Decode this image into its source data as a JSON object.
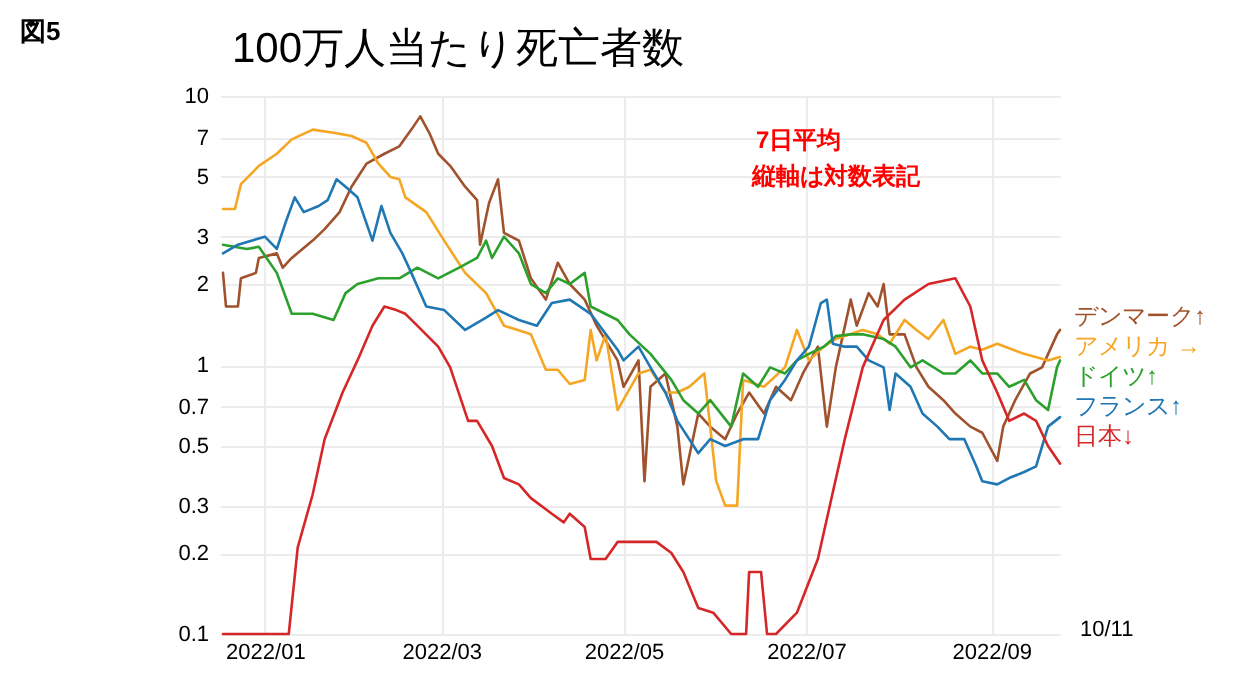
{
  "chart_data": {
    "type": "line",
    "title": "100万人当たり死亡者数",
    "annotations": [
      "図5",
      "7日平均",
      "縦軸は対数表記",
      "10/11"
    ],
    "log": "y",
    "grid": true,
    "legend": "right",
    "xlim": [
      "2021-12-17",
      "2022-09-24"
    ],
    "xticks": [
      {
        "value": "2022-01-01",
        "label": "2022/01"
      },
      {
        "value": "2022-03-01",
        "label": "2022/03"
      },
      {
        "value": "2022-05-01",
        "label": "2022/05"
      },
      {
        "value": "2022-07-01",
        "label": "2022/07"
      },
      {
        "value": "2022-09-01",
        "label": "2022/09"
      }
    ],
    "ylim": [
      0.1,
      10
    ],
    "yticks": [
      0.1,
      0.2,
      0.3,
      0.5,
      0.7,
      1,
      2,
      3,
      5,
      7,
      10
    ],
    "series": [
      {
        "name": "デンマーク↑",
        "color": "#a0522d",
        "x": [
          "2021-12-18",
          "2021-12-19",
          "2021-12-23",
          "2021-12-24",
          "2021-12-29",
          "2021-12-30",
          "2022-01-05",
          "2022-01-07",
          "2022-01-10",
          "2022-01-17",
          "2022-01-21",
          "2022-01-26",
          "2022-01-30",
          "2022-02-04",
          "2022-02-10",
          "2022-02-15",
          "2022-02-19",
          "2022-02-22",
          "2022-02-25",
          "2022-02-28",
          "2022-03-04",
          "2022-03-09",
          "2022-03-13",
          "2022-03-14",
          "2022-03-17",
          "2022-03-20",
          "2022-03-22",
          "2022-03-27",
          "2022-03-31",
          "2022-04-05",
          "2022-04-09",
          "2022-04-13",
          "2022-04-18",
          "2022-04-22",
          "2022-04-29",
          "2022-05-01",
          "2022-05-06",
          "2022-05-08",
          "2022-05-10",
          "2022-05-15",
          "2022-05-19",
          "2022-05-21",
          "2022-05-26",
          "2022-05-30",
          "2022-06-04",
          "2022-06-08",
          "2022-06-12",
          "2022-06-17",
          "2022-06-21",
          "2022-06-26",
          "2022-06-30",
          "2022-07-05",
          "2022-07-08",
          "2022-07-11",
          "2022-07-16",
          "2022-07-18",
          "2022-07-22",
          "2022-07-25",
          "2022-07-27",
          "2022-07-29",
          "2022-08-03",
          "2022-08-07",
          "2022-08-11",
          "2022-08-16",
          "2022-08-20",
          "2022-08-25",
          "2022-08-29",
          "2022-09-03",
          "2022-09-05",
          "2022-09-09",
          "2022-09-14",
          "2022-09-18",
          "2022-09-23",
          "2022-09-24"
        ],
        "values": [
          2.2,
          1.65,
          1.65,
          2.1,
          2.2,
          2.5,
          2.6,
          2.3,
          2.5,
          2.9,
          3.2,
          3.7,
          4.6,
          5.6,
          6.1,
          6.5,
          7.5,
          8.4,
          7.3,
          6.1,
          5.5,
          4.6,
          4.1,
          2.8,
          4.0,
          4.9,
          3.1,
          2.9,
          2.1,
          1.75,
          2.4,
          2.0,
          1.75,
          1.4,
          1.04,
          0.83,
          1.04,
          0.37,
          0.83,
          0.93,
          0.59,
          0.36,
          0.66,
          0.59,
          0.53,
          0.66,
          0.79,
          0.66,
          0.83,
          0.74,
          0.93,
          1.17,
          0.59,
          0.98,
          1.75,
          1.4,
          1.85,
          1.65,
          2.0,
          1.3,
          1.3,
          0.98,
          0.83,
          0.74,
          0.66,
          0.59,
          0.56,
          0.44,
          0.59,
          0.74,
          0.93,
          0.98,
          1.3,
          1.35
        ]
      },
      {
        "name": "アメリカ →",
        "color": "#f5a623",
        "x": [
          "2021-12-18",
          "2021-12-22",
          "2021-12-24",
          "2021-12-30",
          "2022-01-05",
          "2022-01-10",
          "2022-01-17",
          "2022-01-24",
          "2022-01-30",
          "2022-02-04",
          "2022-02-08",
          "2022-02-12",
          "2022-02-15",
          "2022-02-17",
          "2022-02-24",
          "2022-03-02",
          "2022-03-09",
          "2022-03-16",
          "2022-03-22",
          "2022-03-31",
          "2022-04-05",
          "2022-04-09",
          "2022-04-13",
          "2022-04-18",
          "2022-04-20",
          "2022-04-22",
          "2022-04-25",
          "2022-04-29",
          "2022-05-06",
          "2022-05-10",
          "2022-05-15",
          "2022-05-19",
          "2022-05-23",
          "2022-05-28",
          "2022-06-01",
          "2022-06-04",
          "2022-06-08",
          "2022-06-10",
          "2022-06-17",
          "2022-06-24",
          "2022-06-28",
          "2022-07-02",
          "2022-07-07",
          "2022-07-11",
          "2022-07-20",
          "2022-07-25",
          "2022-07-29",
          "2022-08-03",
          "2022-08-07",
          "2022-08-11",
          "2022-08-16",
          "2022-08-20",
          "2022-08-25",
          "2022-08-29",
          "2022-09-03",
          "2022-09-12",
          "2022-09-20",
          "2022-09-24"
        ],
        "values": [
          3.8,
          3.8,
          4.7,
          5.5,
          6.1,
          6.9,
          7.5,
          7.3,
          7.1,
          6.7,
          5.6,
          5.0,
          4.9,
          4.2,
          3.7,
          2.9,
          2.2,
          1.85,
          1.4,
          1.3,
          0.96,
          0.96,
          0.85,
          0.88,
          1.35,
          1.04,
          1.3,
          0.68,
          0.93,
          0.96,
          0.79,
          0.79,
          0.83,
          0.93,
          0.37,
          0.3,
          0.3,
          0.88,
          0.83,
          0.98,
          1.35,
          1.04,
          1.17,
          1.25,
          1.35,
          1.3,
          1.2,
          1.47,
          1.35,
          1.25,
          1.47,
          1.1,
          1.17,
          1.14,
          1.2,
          1.1,
          1.04,
          1.07
        ]
      },
      {
        "name": "ドイツ↑",
        "color": "#2ca02c",
        "x": [
          "2021-12-18",
          "2021-12-26",
          "2021-12-30",
          "2022-01-05",
          "2022-01-10",
          "2022-01-17",
          "2022-01-24",
          "2022-01-28",
          "2022-02-01",
          "2022-02-08",
          "2022-02-15",
          "2022-02-21",
          "2022-02-28",
          "2022-03-07",
          "2022-03-13",
          "2022-03-16",
          "2022-03-18",
          "2022-03-22",
          "2022-03-27",
          "2022-03-31",
          "2022-04-05",
          "2022-04-09",
          "2022-04-13",
          "2022-04-18",
          "2022-04-20",
          "2022-04-29",
          "2022-05-03",
          "2022-05-10",
          "2022-05-17",
          "2022-05-21",
          "2022-05-26",
          "2022-05-30",
          "2022-06-06",
          "2022-06-10",
          "2022-06-15",
          "2022-06-19",
          "2022-06-24",
          "2022-06-28",
          "2022-07-02",
          "2022-07-07",
          "2022-07-11",
          "2022-07-16",
          "2022-07-20",
          "2022-07-27",
          "2022-07-31",
          "2022-08-05",
          "2022-08-09",
          "2022-08-16",
          "2022-08-20",
          "2022-08-25",
          "2022-08-29",
          "2022-09-03",
          "2022-09-07",
          "2022-09-12",
          "2022-09-16",
          "2022-09-20",
          "2022-09-23",
          "2022-09-24"
        ],
        "values": [
          2.8,
          2.7,
          2.75,
          2.2,
          1.55,
          1.55,
          1.47,
          1.85,
          2.0,
          2.1,
          2.1,
          2.3,
          2.1,
          2.3,
          2.5,
          2.9,
          2.5,
          3.0,
          2.6,
          2.0,
          1.85,
          2.1,
          2.0,
          2.2,
          1.65,
          1.47,
          1.3,
          1.1,
          0.88,
          0.74,
          0.66,
          0.74,
          0.59,
          0.93,
          0.83,
          0.98,
          0.93,
          1.04,
          1.1,
          1.17,
          1.28,
          1.3,
          1.3,
          1.25,
          1.17,
          0.98,
          1.04,
          0.93,
          0.93,
          1.04,
          0.93,
          0.93,
          0.83,
          0.88,
          0.74,
          0.68,
          0.98,
          1.04
        ]
      },
      {
        "name": "フランス↑",
        "color": "#1f77b4",
        "x": [
          "2021-12-18",
          "2021-12-23",
          "2022-01-01",
          "2022-01-05",
          "2022-01-08",
          "2022-01-11",
          "2022-01-14",
          "2022-01-19",
          "2022-01-22",
          "2022-01-25",
          "2022-01-28",
          "2022-02-01",
          "2022-02-06",
          "2022-02-09",
          "2022-02-12",
          "2022-02-16",
          "2022-02-19",
          "2022-02-24",
          "2022-03-02",
          "2022-03-09",
          "2022-03-16",
          "2022-03-20",
          "2022-03-27",
          "2022-04-02",
          "2022-04-07",
          "2022-04-13",
          "2022-04-20",
          "2022-04-29",
          "2022-05-01",
          "2022-05-06",
          "2022-05-10",
          "2022-05-15",
          "2022-05-19",
          "2022-05-26",
          "2022-05-30",
          "2022-06-04",
          "2022-06-10",
          "2022-06-15",
          "2022-06-19",
          "2022-06-24",
          "2022-06-28",
          "2022-07-02",
          "2022-07-06",
          "2022-07-08",
          "2022-07-10",
          "2022-07-14",
          "2022-07-18",
          "2022-07-22",
          "2022-07-27",
          "2022-07-29",
          "2022-07-31",
          "2022-08-05",
          "2022-08-09",
          "2022-08-14",
          "2022-08-18",
          "2022-08-23",
          "2022-08-27",
          "2022-08-29",
          "2022-09-03",
          "2022-09-07",
          "2022-09-12",
          "2022-09-16",
          "2022-09-20",
          "2022-09-24"
        ],
        "values": [
          2.6,
          2.8,
          3.0,
          2.7,
          3.4,
          4.2,
          3.7,
          3.9,
          4.1,
          4.9,
          4.6,
          4.2,
          2.9,
          3.9,
          3.1,
          2.6,
          2.2,
          1.65,
          1.6,
          1.35,
          1.5,
          1.6,
          1.47,
          1.4,
          1.7,
          1.75,
          1.55,
          1.14,
          1.04,
          1.17,
          0.98,
          0.79,
          0.62,
          0.47,
          0.53,
          0.5,
          0.53,
          0.53,
          0.74,
          0.88,
          1.04,
          1.17,
          1.7,
          1.75,
          1.2,
          1.17,
          1.17,
          1.04,
          0.98,
          0.68,
          0.93,
          0.83,
          0.66,
          0.59,
          0.53,
          0.53,
          0.42,
          0.37,
          0.36,
          0.38,
          0.4,
          0.42,
          0.59,
          0.64
        ]
      },
      {
        "name": "日本↓",
        "color": "#d62728",
        "x": [
          "2021-12-18",
          "2022-01-09",
          "2022-01-12",
          "2022-01-17",
          "2022-01-21",
          "2022-01-27",
          "2022-02-01",
          "2022-02-06",
          "2022-02-10",
          "2022-02-14",
          "2022-02-17",
          "2022-02-21",
          "2022-02-28",
          "2022-03-04",
          "2022-03-10",
          "2022-03-13",
          "2022-03-18",
          "2022-03-22",
          "2022-03-27",
          "2022-03-31",
          "2022-04-07",
          "2022-04-11",
          "2022-04-13",
          "2022-04-18",
          "2022-04-20",
          "2022-04-25",
          "2022-04-29",
          "2022-05-03",
          "2022-05-12",
          "2022-05-17",
          "2022-05-21",
          "2022-05-26",
          "2022-05-31",
          "2022-06-06",
          "2022-06-11",
          "2022-06-12",
          "2022-06-16",
          "2022-06-18",
          "2022-06-21",
          "2022-06-28",
          "2022-07-05",
          "2022-07-09",
          "2022-07-14",
          "2022-07-20",
          "2022-07-27",
          "2022-08-03",
          "2022-08-11",
          "2022-08-20",
          "2022-08-25",
          "2022-08-29",
          "2022-09-03",
          "2022-09-07",
          "2022-09-12",
          "2022-09-16",
          "2022-09-20",
          "2022-09-24"
        ],
        "values": [
          0.1,
          0.1,
          0.21,
          0.33,
          0.53,
          0.79,
          1.04,
          1.4,
          1.65,
          1.6,
          1.55,
          1.4,
          1.17,
          0.98,
          0.62,
          0.62,
          0.5,
          0.38,
          0.36,
          0.32,
          0.28,
          0.26,
          0.28,
          0.25,
          0.19,
          0.19,
          0.22,
          0.22,
          0.22,
          0.2,
          0.17,
          0.125,
          0.12,
          0.1,
          0.1,
          0.17,
          0.17,
          0.1,
          0.1,
          0.12,
          0.19,
          0.3,
          0.53,
          0.98,
          1.47,
          1.75,
          2.0,
          2.1,
          1.65,
          1.04,
          0.79,
          0.62,
          0.66,
          0.62,
          0.5,
          0.43
        ]
      }
    ]
  }
}
